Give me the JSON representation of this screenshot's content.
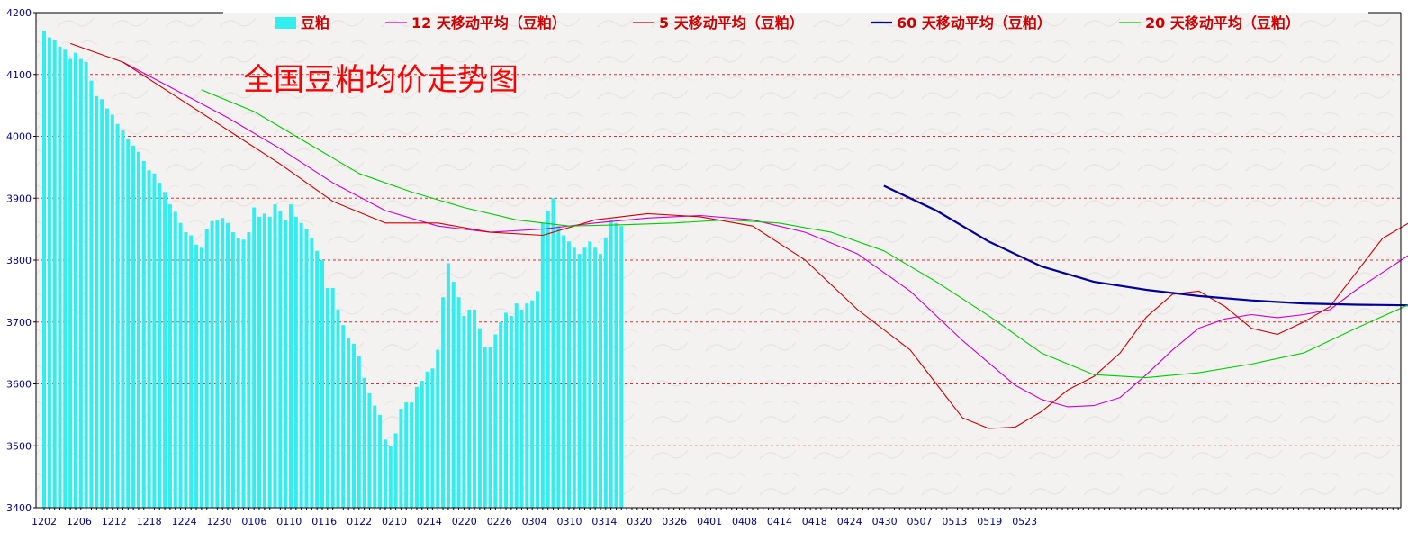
{
  "chart_data": {
    "type": "bar+line",
    "title": "全国豆粕均价走势图",
    "ylim": [
      3400,
      4200
    ],
    "yticks": [
      "3400",
      "3500",
      "3600",
      "3700",
      "3800",
      "3900",
      "4000",
      "4100",
      "4200"
    ],
    "grid": true,
    "legend_position": "top",
    "x_labels": [
      "1202",
      "1206",
      "1212",
      "1218",
      "1224",
      "1230",
      "0106",
      "0110",
      "0116",
      "0122",
      "0210",
      "0214",
      "0220",
      "0226",
      "0304",
      "0310",
      "0314",
      "0320",
      "0326",
      "0401",
      "0408",
      "0414",
      "0418",
      "0424",
      "0430",
      "0507",
      "0513",
      "0519",
      "0523"
    ],
    "bar_series": {
      "name": "豆粕",
      "color": "#33eeee",
      "values": [
        4170,
        4160,
        4155,
        4145,
        4140,
        4125,
        4135,
        4125,
        4120,
        4090,
        4065,
        4060,
        4045,
        4035,
        4020,
        4010,
        3995,
        3985,
        3975,
        3960,
        3945,
        3940,
        3925,
        3910,
        3890,
        3878,
        3860,
        3845,
        3840,
        3825,
        3820,
        3850,
        3863,
        3865,
        3868,
        3860,
        3845,
        3835,
        3833,
        3845,
        3885,
        3870,
        3875,
        3870,
        3890,
        3880,
        3865,
        3890,
        3870,
        3860,
        3850,
        3835,
        3815,
        3800,
        3755,
        3755,
        3720,
        3695,
        3675,
        3665,
        3645,
        3610,
        3585,
        3565,
        3550,
        3510,
        3500,
        3520,
        3560,
        3570,
        3570,
        3595,
        3605,
        3620,
        3625,
        3655,
        3740,
        3795,
        3765,
        3740,
        3710,
        3720,
        3720,
        3690,
        3660,
        3660,
        3680,
        3700,
        3715,
        3710,
        3730,
        3720,
        3730,
        3735,
        3750,
        3860,
        3880,
        3900,
        3855,
        3840,
        3830,
        3820,
        3810,
        3820,
        3830,
        3820,
        3810,
        3835,
        3865,
        3860,
        3855
      ]
    },
    "line_series": [
      {
        "name": "12 天移动平均（豆粕）",
        "color": "#cc00cc",
        "stroke": 1.1,
        "points": [
          [
            15,
            4120
          ],
          [
            25,
            4075
          ],
          [
            35,
            4030
          ],
          [
            45,
            3980
          ],
          [
            55,
            3925
          ],
          [
            65,
            3880
          ],
          [
            75,
            3855
          ],
          [
            85,
            3845
          ],
          [
            95,
            3850
          ],
          [
            105,
            3860
          ],
          [
            115,
            3868
          ],
          [
            125,
            3872
          ],
          [
            135,
            3865
          ],
          [
            145,
            3845
          ],
          [
            155,
            3810
          ],
          [
            165,
            3750
          ],
          [
            175,
            3670
          ],
          [
            185,
            3598
          ],
          [
            190,
            3575
          ],
          [
            195,
            3563
          ],
          [
            200,
            3565
          ],
          [
            205,
            3578
          ],
          [
            210,
            3615
          ],
          [
            215,
            3655
          ],
          [
            220,
            3690
          ],
          [
            225,
            3705
          ],
          [
            230,
            3712
          ],
          [
            235,
            3707
          ],
          [
            240,
            3712
          ],
          [
            245,
            3720
          ],
          [
            250,
            3752
          ],
          [
            255,
            3780
          ],
          [
            260,
            3808
          ],
          [
            265,
            3828
          ],
          [
            270,
            3835
          ],
          [
            275,
            3835
          ],
          [
            280,
            3840
          ],
          [
            285,
            3850
          ],
          [
            290,
            3855
          ],
          [
            295,
            3853
          ]
        ]
      },
      {
        "name": "5 天移动平均（豆粕）",
        "color": "#cc0000",
        "stroke": 1.1,
        "points": [
          [
            5,
            4150
          ],
          [
            15,
            4120
          ],
          [
            25,
            4065
          ],
          [
            35,
            4010
          ],
          [
            45,
            3955
          ],
          [
            55,
            3895
          ],
          [
            65,
            3860
          ],
          [
            75,
            3860
          ],
          [
            85,
            3845
          ],
          [
            95,
            3840
          ],
          [
            105,
            3865
          ],
          [
            115,
            3875
          ],
          [
            125,
            3870
          ],
          [
            135,
            3855
          ],
          [
            145,
            3800
          ],
          [
            155,
            3720
          ],
          [
            165,
            3655
          ],
          [
            170,
            3600
          ],
          [
            175,
            3545
          ],
          [
            180,
            3528
          ],
          [
            185,
            3530
          ],
          [
            190,
            3555
          ],
          [
            195,
            3590
          ],
          [
            200,
            3612
          ],
          [
            205,
            3650
          ],
          [
            210,
            3708
          ],
          [
            215,
            3745
          ],
          [
            220,
            3750
          ],
          [
            225,
            3725
          ],
          [
            230,
            3690
          ],
          [
            235,
            3680
          ],
          [
            240,
            3700
          ],
          [
            245,
            3725
          ],
          [
            250,
            3780
          ],
          [
            255,
            3835
          ],
          [
            260,
            3860
          ],
          [
            265,
            3848
          ],
          [
            270,
            3830
          ],
          [
            275,
            3820
          ],
          [
            280,
            3820
          ],
          [
            285,
            3833
          ],
          [
            290,
            3848
          ],
          [
            295,
            3856
          ],
          [
            300,
            3858
          ],
          [
            305,
            3855
          ]
        ]
      },
      {
        "name": "60 天移动平均（豆粕）",
        "color": "#000099",
        "stroke": 2.2,
        "points": [
          [
            160,
            3920
          ],
          [
            170,
            3880
          ],
          [
            180,
            3830
          ],
          [
            190,
            3790
          ],
          [
            200,
            3765
          ],
          [
            210,
            3752
          ],
          [
            220,
            3742
          ],
          [
            230,
            3735
          ],
          [
            240,
            3730
          ],
          [
            250,
            3728
          ],
          [
            260,
            3727
          ],
          [
            270,
            3725
          ],
          [
            280,
            3722
          ],
          [
            290,
            3718
          ],
          [
            300,
            3713
          ],
          [
            310,
            3710
          ],
          [
            320,
            3712
          ],
          [
            330,
            3720
          ],
          [
            340,
            3740
          ],
          [
            350,
            3760
          ],
          [
            360,
            3776
          ],
          [
            370,
            3778
          ],
          [
            380,
            3790
          ],
          [
            390,
            3808
          ],
          [
            400,
            3825
          ],
          [
            410,
            3842
          ],
          [
            416,
            3835
          ]
        ]
      },
      {
        "name": "20 天移动平均（豆粕）",
        "color": "#00cc00",
        "stroke": 1.1,
        "points": [
          [
            30,
            4075
          ],
          [
            40,
            4040
          ],
          [
            50,
            3990
          ],
          [
            60,
            3940
          ],
          [
            70,
            3910
          ],
          [
            80,
            3885
          ],
          [
            90,
            3865
          ],
          [
            100,
            3855
          ],
          [
            110,
            3857
          ],
          [
            120,
            3860
          ],
          [
            130,
            3865
          ],
          [
            140,
            3860
          ],
          [
            150,
            3845
          ],
          [
            160,
            3815
          ],
          [
            170,
            3765
          ],
          [
            180,
            3710
          ],
          [
            190,
            3650
          ],
          [
            200,
            3615
          ],
          [
            210,
            3610
          ],
          [
            220,
            3618
          ],
          [
            230,
            3632
          ],
          [
            240,
            3650
          ],
          [
            250,
            3690
          ],
          [
            260,
            3728
          ],
          [
            270,
            3745
          ],
          [
            280,
            3760
          ],
          [
            290,
            3780
          ],
          [
            300,
            3800
          ],
          [
            305,
            3815
          ],
          [
            310,
            3835
          ],
          [
            315,
            3845
          ],
          [
            320,
            3840
          ],
          [
            325,
            3832
          ],
          [
            330,
            3832
          ],
          [
            335,
            3838
          ],
          [
            340,
            3845
          ],
          [
            345,
            3858
          ],
          [
            350,
            3855
          ]
        ]
      }
    ]
  },
  "legend": [
    {
      "label": "豆粕",
      "color": "#33eeee",
      "kind": "bar"
    },
    {
      "label": "12 天移动平均（豆粕）",
      "color": "#cc00cc",
      "kind": "line"
    },
    {
      "label": "5 天移动平均（豆粕）",
      "color": "#cc0000",
      "kind": "line"
    },
    {
      "label": "60 天移动平均（豆粕）",
      "color": "#000099",
      "kind": "line"
    },
    {
      "label": "20 天移动平均（豆粕）",
      "color": "#00cc00",
      "kind": "line"
    }
  ]
}
